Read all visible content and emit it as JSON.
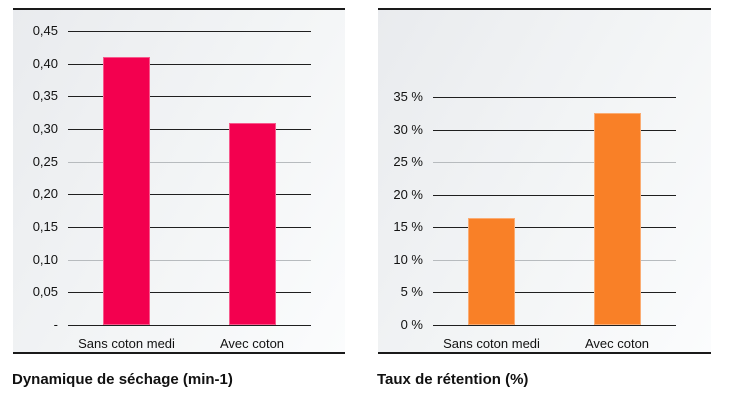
{
  "page": {
    "background_color": "#ffffff"
  },
  "chart_data": [
    {
      "type": "bar",
      "title": "Dynamique de séchage (min-1)",
      "categories": [
        "Sans coton medi",
        "Avec coton"
      ],
      "values": [
        0.41,
        0.309
      ],
      "bar_color": "#f3004f",
      "ylim": [
        0,
        0.45
      ],
      "grid": true,
      "legend": "none",
      "yticks": [
        {
          "label": "0,45",
          "value": 0.45
        },
        {
          "label": "0,40",
          "value": 0.4
        },
        {
          "label": "0,35",
          "value": 0.35
        },
        {
          "label": "0,30",
          "value": 0.3
        },
        {
          "label": "0,25",
          "value": 0.25
        },
        {
          "label": "0,20",
          "value": 0.2
        },
        {
          "label": "0,15",
          "value": 0.15
        },
        {
          "label": "0,10",
          "value": 0.1
        },
        {
          "label": "0,05",
          "value": 0.05
        },
        {
          "label": "-",
          "value": 0
        }
      ]
    },
    {
      "type": "bar",
      "title": "Taux de rétention (%)",
      "categories": [
        "Sans coton medi",
        "Avec coton"
      ],
      "values": [
        16.5,
        32.5
      ],
      "bar_color": "#f98027",
      "ylim": [
        0,
        35
      ],
      "grid": true,
      "legend": "none",
      "yticks": [
        {
          "label": "35 %",
          "value": 35
        },
        {
          "label": "30 %",
          "value": 30
        },
        {
          "label": "25 %",
          "value": 25
        },
        {
          "label": "20 %",
          "value": 20
        },
        {
          "label": "15 %",
          "value": 15
        },
        {
          "label": "10 %",
          "value": 10
        },
        {
          "label": "5 %",
          "value": 5
        },
        {
          "label": "0 %",
          "value": 0
        }
      ]
    }
  ]
}
